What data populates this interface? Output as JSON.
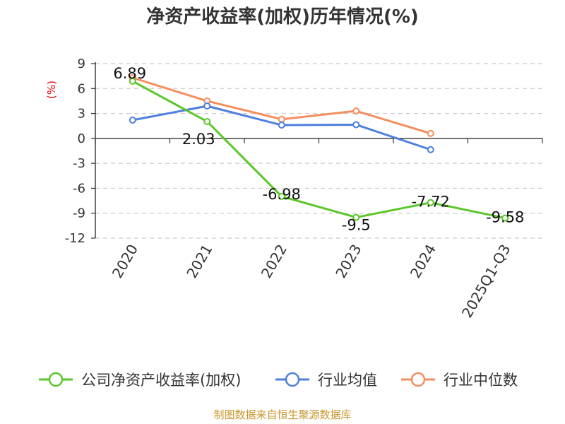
{
  "chart_data": {
    "type": "line",
    "title": "净资产收益率(加权)历年情况(%)",
    "ylabel": "(%)",
    "xlabel": "",
    "categories": [
      "2020",
      "2021",
      "2022",
      "2023",
      "2024",
      "2025Q1-Q3"
    ],
    "ylim": [
      -12,
      9
    ],
    "yticks": [
      9,
      6,
      3,
      0,
      -3,
      -6,
      -9,
      -12
    ],
    "grid": true,
    "legend_position": "bottom",
    "series": [
      {
        "name": "公司净资产收益率(加权)",
        "color": "#5cc62b",
        "values": [
          6.89,
          2.03,
          -6.98,
          -9.5,
          -7.72,
          -9.58
        ],
        "labels": [
          "6.89",
          "2.03",
          "-6.98",
          "-9.5",
          "-7.72",
          "-9.58"
        ]
      },
      {
        "name": "行业均值",
        "color": "#4f7fdf",
        "values": [
          2.2,
          3.9,
          1.6,
          1.65,
          -1.35,
          null
        ]
      },
      {
        "name": "行业中位数",
        "color": "#f58e5e",
        "values": [
          7.3,
          4.5,
          2.3,
          3.3,
          0.6,
          null
        ]
      }
    ]
  },
  "footer": "制图数据来自恒生聚源数据库"
}
